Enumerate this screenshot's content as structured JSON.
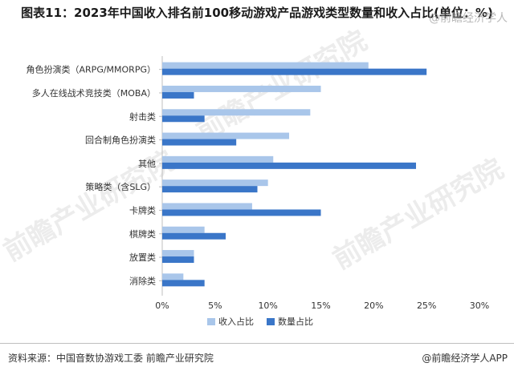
{
  "title": "图表11：2023年中国收入排名前100移动游戏产品游戏类型数量和收入占比(单位：%)",
  "watermark_text": "@前瞻经济学人",
  "watermark_brand": "前瞻产业研究院",
  "footer": {
    "source": "资料来源：中国音数协游戏工委 前瞻产业研究院",
    "credit": "@前瞻经济学人APP"
  },
  "colors": {
    "income": "#a9c6ea",
    "count": "#3a76c8"
  },
  "chart_data": {
    "type": "bar",
    "orientation": "horizontal",
    "categories": [
      "角色扮演类（ARPG/MMORPG）",
      "多人在线战术竞技类（MOBA）",
      "射击类",
      "回合制角色扮演类",
      "其他",
      "策略类（含SLG）",
      "卡牌类",
      "棋牌类",
      "放置类",
      "消除类"
    ],
    "series": [
      {
        "name": "收入占比",
        "values": [
          19.5,
          15,
          14,
          12,
          10.5,
          10,
          8.5,
          4,
          3,
          2
        ]
      },
      {
        "name": "数量占比",
        "values": [
          25,
          3,
          4,
          7,
          24,
          9,
          15,
          6,
          3,
          4
        ]
      }
    ],
    "xlim": [
      0,
      30
    ],
    "xticks": [
      "0%",
      "5%",
      "10%",
      "15%",
      "20%",
      "25%",
      "30%"
    ],
    "grid": false,
    "legend_position": "bottom"
  }
}
